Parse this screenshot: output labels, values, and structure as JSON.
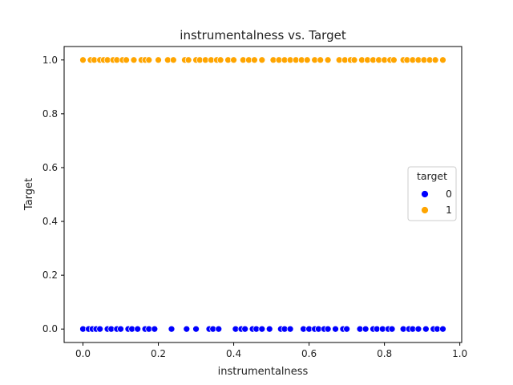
{
  "chart_data": {
    "type": "scatter",
    "title": "instrumentalness vs. Target",
    "xlabel": "instrumentalness",
    "ylabel": "Target",
    "xlim": [
      -0.05,
      1.005
    ],
    "ylim": [
      -0.05,
      1.05
    ],
    "xticks": [
      0.0,
      0.2,
      0.4,
      0.6,
      0.8,
      1.0
    ],
    "xtick_labels": [
      "0.0",
      "0.2",
      "0.4",
      "0.6",
      "0.8",
      "1.0"
    ],
    "yticks": [
      0.0,
      0.2,
      0.4,
      0.6,
      0.8,
      1.0
    ],
    "ytick_labels": [
      "0.0",
      "0.2",
      "0.4",
      "0.6",
      "0.8",
      "1.0"
    ],
    "grid": false,
    "legend": {
      "title": "target",
      "placement": "center-right",
      "entries": [
        "0",
        "1"
      ]
    },
    "series": [
      {
        "name": "0",
        "color": "#0000ff",
        "y": 0,
        "x": [
          0.0,
          0.015,
          0.025,
          0.035,
          0.045,
          0.065,
          0.075,
          0.09,
          0.1,
          0.12,
          0.13,
          0.145,
          0.165,
          0.175,
          0.19,
          0.235,
          0.275,
          0.3,
          0.335,
          0.345,
          0.36,
          0.405,
          0.42,
          0.43,
          0.45,
          0.46,
          0.475,
          0.495,
          0.525,
          0.535,
          0.55,
          0.585,
          0.6,
          0.615,
          0.625,
          0.64,
          0.65,
          0.67,
          0.69,
          0.7,
          0.735,
          0.75,
          0.77,
          0.78,
          0.795,
          0.81,
          0.82,
          0.85,
          0.865,
          0.875,
          0.89,
          0.91,
          0.93,
          0.94,
          0.955
        ]
      },
      {
        "name": "1",
        "color": "#ffa500",
        "y": 1,
        "x": [
          0.0,
          0.02,
          0.03,
          0.045,
          0.055,
          0.065,
          0.08,
          0.09,
          0.105,
          0.115,
          0.135,
          0.155,
          0.165,
          0.175,
          0.2,
          0.225,
          0.24,
          0.27,
          0.28,
          0.3,
          0.31,
          0.325,
          0.34,
          0.355,
          0.365,
          0.385,
          0.4,
          0.425,
          0.44,
          0.455,
          0.475,
          0.505,
          0.52,
          0.535,
          0.55,
          0.565,
          0.58,
          0.595,
          0.615,
          0.63,
          0.65,
          0.68,
          0.695,
          0.71,
          0.72,
          0.74,
          0.755,
          0.77,
          0.785,
          0.8,
          0.815,
          0.825,
          0.85,
          0.86,
          0.875,
          0.89,
          0.905,
          0.92,
          0.935,
          0.955
        ]
      }
    ]
  }
}
